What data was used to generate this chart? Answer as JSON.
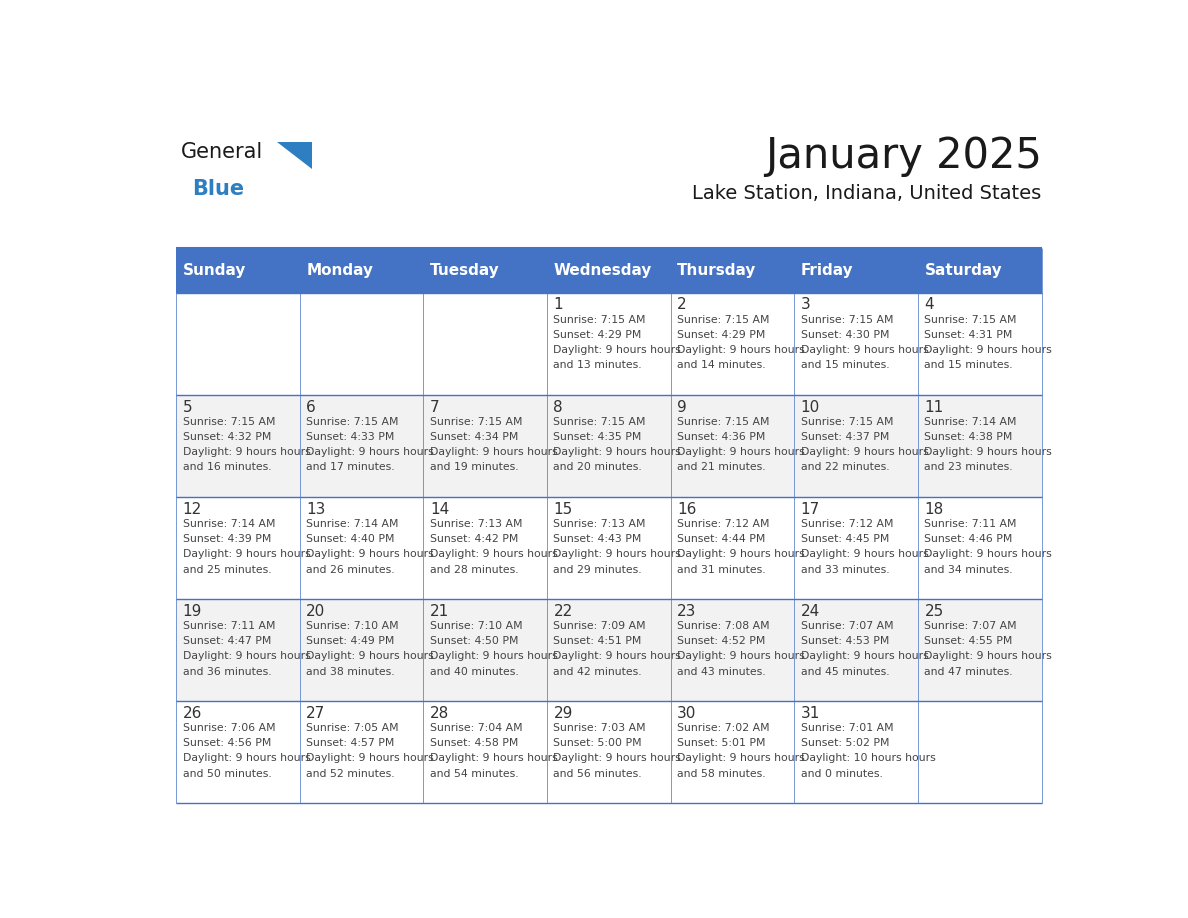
{
  "title": "January 2025",
  "subtitle": "Lake Station, Indiana, United States",
  "days_of_week": [
    "Sunday",
    "Monday",
    "Tuesday",
    "Wednesday",
    "Thursday",
    "Friday",
    "Saturday"
  ],
  "header_bg": "#4472C4",
  "header_text": "#FFFFFF",
  "cell_bg_light": "#FFFFFF",
  "cell_bg_alt": "#F2F2F2",
  "border_color": "#4472C4",
  "day_num_color": "#333333",
  "text_color": "#444444",
  "title_color": "#1a1a1a",
  "subtitle_color": "#1a1a1a",
  "logo_general_color": "#1a1a1a",
  "logo_blue_color": "#2e7ec2",
  "weeks": [
    [
      {
        "day": null,
        "sunrise": null,
        "sunset": null,
        "daylight": null
      },
      {
        "day": null,
        "sunrise": null,
        "sunset": null,
        "daylight": null
      },
      {
        "day": null,
        "sunrise": null,
        "sunset": null,
        "daylight": null
      },
      {
        "day": 1,
        "sunrise": "7:15 AM",
        "sunset": "4:29 PM",
        "daylight": "9 hours and 13 minutes."
      },
      {
        "day": 2,
        "sunrise": "7:15 AM",
        "sunset": "4:29 PM",
        "daylight": "9 hours and 14 minutes."
      },
      {
        "day": 3,
        "sunrise": "7:15 AM",
        "sunset": "4:30 PM",
        "daylight": "9 hours and 15 minutes."
      },
      {
        "day": 4,
        "sunrise": "7:15 AM",
        "sunset": "4:31 PM",
        "daylight": "9 hours and 15 minutes."
      }
    ],
    [
      {
        "day": 5,
        "sunrise": "7:15 AM",
        "sunset": "4:32 PM",
        "daylight": "9 hours and 16 minutes."
      },
      {
        "day": 6,
        "sunrise": "7:15 AM",
        "sunset": "4:33 PM",
        "daylight": "9 hours and 17 minutes."
      },
      {
        "day": 7,
        "sunrise": "7:15 AM",
        "sunset": "4:34 PM",
        "daylight": "9 hours and 19 minutes."
      },
      {
        "day": 8,
        "sunrise": "7:15 AM",
        "sunset": "4:35 PM",
        "daylight": "9 hours and 20 minutes."
      },
      {
        "day": 9,
        "sunrise": "7:15 AM",
        "sunset": "4:36 PM",
        "daylight": "9 hours and 21 minutes."
      },
      {
        "day": 10,
        "sunrise": "7:15 AM",
        "sunset": "4:37 PM",
        "daylight": "9 hours and 22 minutes."
      },
      {
        "day": 11,
        "sunrise": "7:14 AM",
        "sunset": "4:38 PM",
        "daylight": "9 hours and 23 minutes."
      }
    ],
    [
      {
        "day": 12,
        "sunrise": "7:14 AM",
        "sunset": "4:39 PM",
        "daylight": "9 hours and 25 minutes."
      },
      {
        "day": 13,
        "sunrise": "7:14 AM",
        "sunset": "4:40 PM",
        "daylight": "9 hours and 26 minutes."
      },
      {
        "day": 14,
        "sunrise": "7:13 AM",
        "sunset": "4:42 PM",
        "daylight": "9 hours and 28 minutes."
      },
      {
        "day": 15,
        "sunrise": "7:13 AM",
        "sunset": "4:43 PM",
        "daylight": "9 hours and 29 minutes."
      },
      {
        "day": 16,
        "sunrise": "7:12 AM",
        "sunset": "4:44 PM",
        "daylight": "9 hours and 31 minutes."
      },
      {
        "day": 17,
        "sunrise": "7:12 AM",
        "sunset": "4:45 PM",
        "daylight": "9 hours and 33 minutes."
      },
      {
        "day": 18,
        "sunrise": "7:11 AM",
        "sunset": "4:46 PM",
        "daylight": "9 hours and 34 minutes."
      }
    ],
    [
      {
        "day": 19,
        "sunrise": "7:11 AM",
        "sunset": "4:47 PM",
        "daylight": "9 hours and 36 minutes."
      },
      {
        "day": 20,
        "sunrise": "7:10 AM",
        "sunset": "4:49 PM",
        "daylight": "9 hours and 38 minutes."
      },
      {
        "day": 21,
        "sunrise": "7:10 AM",
        "sunset": "4:50 PM",
        "daylight": "9 hours and 40 minutes."
      },
      {
        "day": 22,
        "sunrise": "7:09 AM",
        "sunset": "4:51 PM",
        "daylight": "9 hours and 42 minutes."
      },
      {
        "day": 23,
        "sunrise": "7:08 AM",
        "sunset": "4:52 PM",
        "daylight": "9 hours and 43 minutes."
      },
      {
        "day": 24,
        "sunrise": "7:07 AM",
        "sunset": "4:53 PM",
        "daylight": "9 hours and 45 minutes."
      },
      {
        "day": 25,
        "sunrise": "7:07 AM",
        "sunset": "4:55 PM",
        "daylight": "9 hours and 47 minutes."
      }
    ],
    [
      {
        "day": 26,
        "sunrise": "7:06 AM",
        "sunset": "4:56 PM",
        "daylight": "9 hours and 50 minutes."
      },
      {
        "day": 27,
        "sunrise": "7:05 AM",
        "sunset": "4:57 PM",
        "daylight": "9 hours and 52 minutes."
      },
      {
        "day": 28,
        "sunrise": "7:04 AM",
        "sunset": "4:58 PM",
        "daylight": "9 hours and 54 minutes."
      },
      {
        "day": 29,
        "sunrise": "7:03 AM",
        "sunset": "5:00 PM",
        "daylight": "9 hours and 56 minutes."
      },
      {
        "day": 30,
        "sunrise": "7:02 AM",
        "sunset": "5:01 PM",
        "daylight": "9 hours and 58 minutes."
      },
      {
        "day": 31,
        "sunrise": "7:01 AM",
        "sunset": "5:02 PM",
        "daylight": "10 hours and 0 minutes."
      },
      {
        "day": null,
        "sunrise": null,
        "sunset": null,
        "daylight": null
      }
    ]
  ]
}
